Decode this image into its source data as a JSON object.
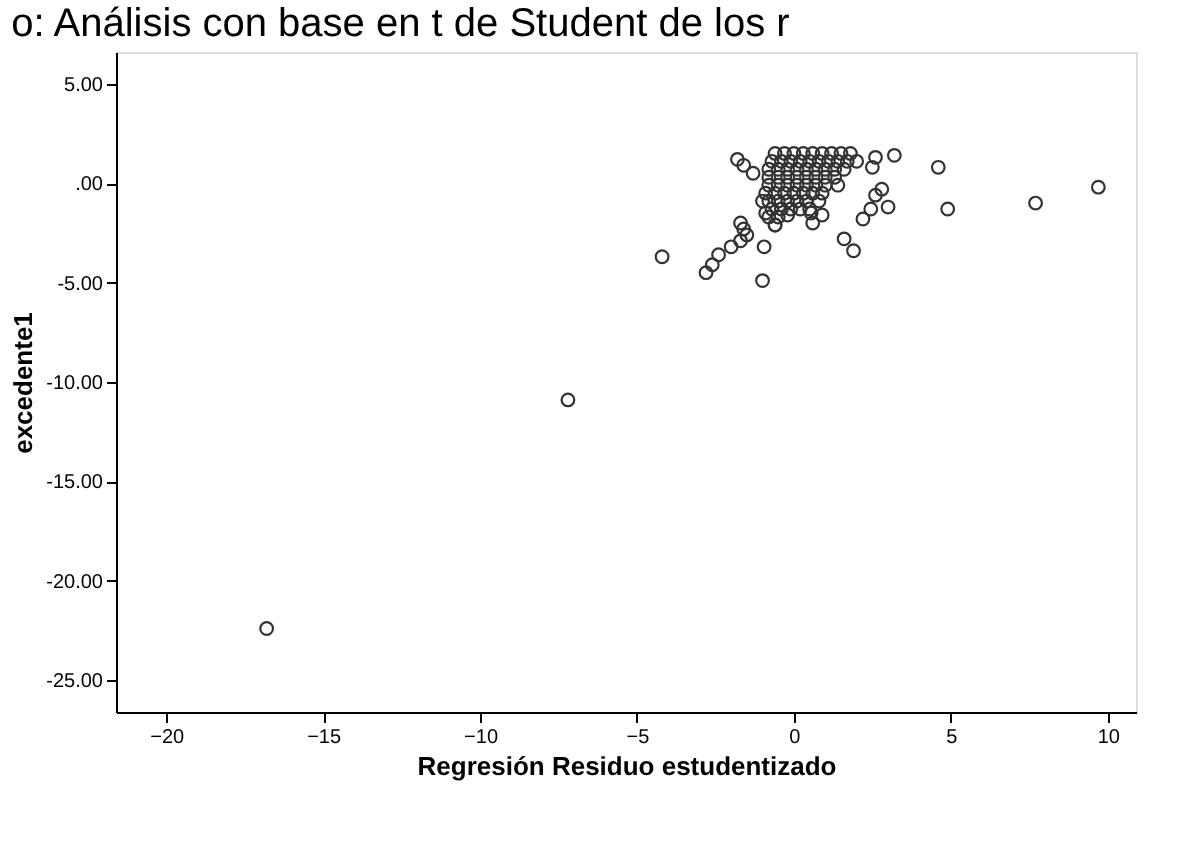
{
  "chart_data": {
    "type": "scatter",
    "title": "o: Análisis con base en t de Student de los r",
    "xlabel": "Regresión Residuo estudentizado",
    "ylabel": "excedente1",
    "xlim": [
      -21.6,
      10.9
    ],
    "ylim": [
      -26.6,
      6.6
    ],
    "xticks": [
      -20,
      -15,
      -10,
      -5,
      0,
      5,
      10
    ],
    "yticks": [
      {
        "value": 5,
        "label": "5.00"
      },
      {
        "value": 0,
        "label": ".00"
      },
      {
        "value": -5,
        "label": "-5.00"
      },
      {
        "value": -10,
        "label": "-10.00"
      },
      {
        "value": -15,
        "label": "-15.00"
      },
      {
        "value": -20,
        "label": "-20.00"
      },
      {
        "value": -25,
        "label": "-25.00"
      }
    ],
    "grid": false,
    "marker": "circle",
    "series": [
      {
        "color": "#333333",
        "x": [
          -16.8,
          -7.2,
          -4.2,
          -2.8,
          -2.6,
          -2.4,
          -2.0,
          -1.7,
          -1.5,
          -1.6,
          -1.7,
          -1.0,
          -0.95,
          -1.8,
          -1.6,
          -1.3,
          -1.0,
          -0.9,
          -0.6,
          -0.2,
          0.55,
          0.6,
          0.9,
          1.6,
          1.9,
          2.2,
          2.45,
          2.8,
          3.0,
          2.6,
          3.2,
          2.6,
          2.5,
          4.6,
          4.9,
          7.7,
          9.7,
          -0.6,
          -0.3,
          0,
          0.3,
          0.6,
          0.9,
          1.2,
          1.5,
          1.8,
          -0.7,
          -0.4,
          -0.1,
          0.2,
          0.5,
          0.8,
          1.1,
          1.4,
          1.7,
          2.0,
          -0.8,
          -0.5,
          -0.2,
          0.1,
          0.4,
          0.7,
          1.0,
          1.3,
          1.6,
          -0.8,
          -0.5,
          -0.2,
          0.1,
          0.4,
          0.7,
          1.0,
          1.3,
          -0.8,
          -0.5,
          -0.2,
          0.1,
          0.4,
          0.7,
          1.0,
          1.4,
          -0.9,
          -0.6,
          -0.3,
          0,
          0.3,
          0.6,
          0.9,
          -0.8,
          -0.5,
          -0.2,
          0.1,
          0.4,
          0.8,
          -0.7,
          -0.4,
          -0.1,
          0.2,
          0.5,
          -0.8,
          -0.5,
          -0.6
        ],
        "values": [
          -22.4,
          -10.9,
          -3.7,
          -4.5,
          -4.1,
          -3.6,
          -3.2,
          -2.9,
          -2.6,
          -2.3,
          -2.0,
          -4.9,
          -3.2,
          1.2,
          0.9,
          0.5,
          -0.9,
          -1.5,
          -2.1,
          -1.6,
          -1.5,
          -2.0,
          -1.6,
          -2.8,
          -3.4,
          -1.8,
          -1.3,
          -0.3,
          -1.2,
          -0.6,
          1.4,
          1.3,
          0.8,
          0.8,
          -1.3,
          -1.0,
          -0.2,
          1.5,
          1.5,
          1.5,
          1.5,
          1.5,
          1.5,
          1.5,
          1.5,
          1.5,
          1.1,
          1.1,
          1.1,
          1.1,
          1.1,
          1.1,
          1.1,
          1.1,
          1.1,
          1.1,
          0.7,
          0.7,
          0.7,
          0.7,
          0.7,
          0.7,
          0.7,
          0.7,
          0.7,
          0.3,
          0.3,
          0.3,
          0.3,
          0.3,
          0.3,
          0.3,
          0.3,
          -0.1,
          -0.1,
          -0.1,
          -0.1,
          -0.1,
          -0.1,
          -0.1,
          -0.1,
          -0.5,
          -0.5,
          -0.5,
          -0.5,
          -0.5,
          -0.5,
          -0.5,
          -0.9,
          -0.9,
          -0.9,
          -0.9,
          -0.9,
          -0.9,
          -1.3,
          -1.3,
          -1.3,
          -1.3,
          -1.3,
          -1.7,
          -1.7,
          -2.1
        ]
      }
    ]
  }
}
